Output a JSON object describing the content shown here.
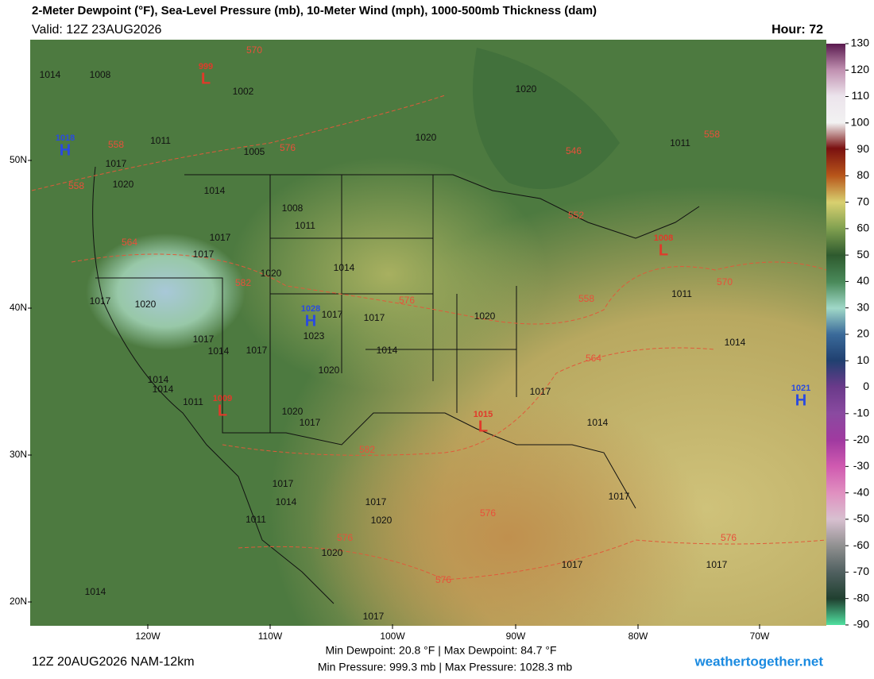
{
  "header": {
    "title": "2-Meter Dewpoint (°F), Sea-Level Pressure (mb), 10-Meter Wind (mph), 1000-500mb Thickness (dam)",
    "valid": "Valid: 12Z 23AUG2026",
    "hour": "Hour: 72"
  },
  "map": {
    "lat_labels": [
      "50N",
      "40N",
      "30N",
      "20N"
    ],
    "lon_labels": [
      "120W",
      "110W",
      "100W",
      "90W",
      "80W",
      "70W"
    ],
    "pressure_centers": [
      {
        "letter": "H",
        "value": "1028"
      },
      {
        "letter": "H",
        "value": "1018"
      },
      {
        "letter": "H",
        "value": "1021"
      },
      {
        "letter": "L",
        "value": "999"
      },
      {
        "letter": "L",
        "value": "1008"
      },
      {
        "letter": "L",
        "value": "1009"
      },
      {
        "letter": "L",
        "value": "1015"
      }
    ],
    "isobar_labels": [
      "1014",
      "1008",
      "1002",
      "1020",
      "1011",
      "1017",
      "1005",
      "1020",
      "1011",
      "1020",
      "1014",
      "1008",
      "1011",
      "1017",
      "1017",
      "1020",
      "1014",
      "1017",
      "1020",
      "1017",
      "1017",
      "1023",
      "1020",
      "1011",
      "1017",
      "1014",
      "1017",
      "1014",
      "1014",
      "1020",
      "1014",
      "1014",
      "1017",
      "1011",
      "1020",
      "1017",
      "1014",
      "1017",
      "1014",
      "1017",
      "1020",
      "1011",
      "1017",
      "1020",
      "1017",
      "1017",
      "1014",
      "1017"
    ],
    "thickness_labels": [
      "570",
      "558",
      "576",
      "558",
      "546",
      "558",
      "552",
      "564",
      "582",
      "576",
      "558",
      "570",
      "564",
      "582",
      "576",
      "576",
      "576",
      "576"
    ]
  },
  "colorbar": {
    "ticks": [
      "130",
      "120",
      "110",
      "100",
      "90",
      "80",
      "70",
      "60",
      "50",
      "40",
      "30",
      "20",
      "10",
      "0",
      "-10",
      "-20",
      "-30",
      "-40",
      "-50",
      "-60",
      "-70",
      "-80",
      "-90"
    ]
  },
  "footer": {
    "run": "12Z 20AUG2026 NAM-12km",
    "stats1": "Min Dewpoint:  20.8 °F | Max Dewpoint:  84.7 °F",
    "stats2": "Min Pressure: 999.3 mb | Max Pressure: 1028.3 mb",
    "site": "weathertogether.net"
  }
}
